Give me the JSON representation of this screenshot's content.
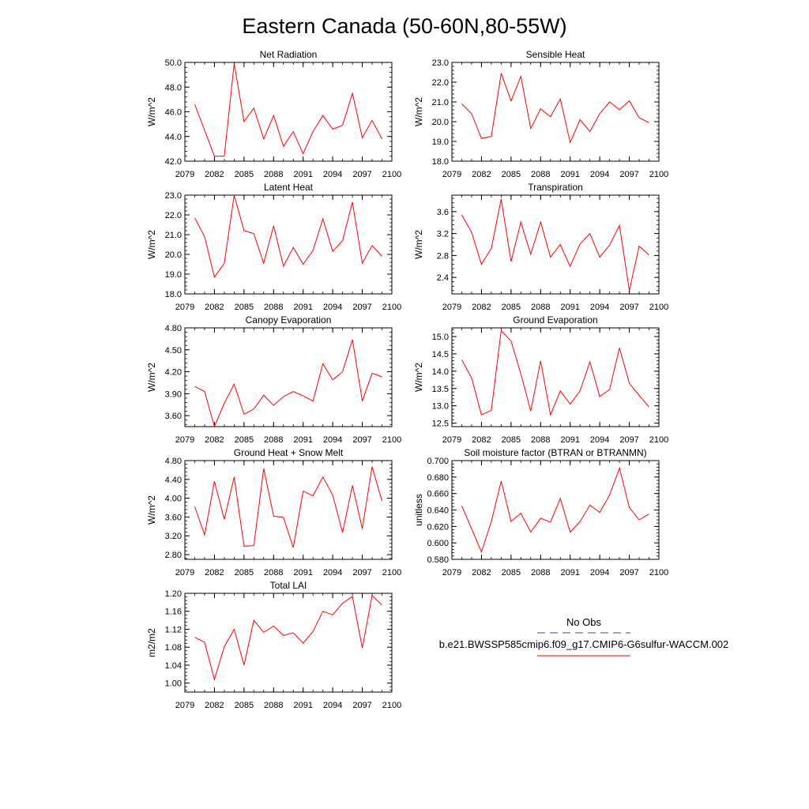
{
  "page_title": "Eastern Canada (50-60N,80-55W)",
  "legend": {
    "entries": [
      {
        "label": "No Obs",
        "color": "#3b3bb0",
        "style": "dashed"
      },
      {
        "label": "b.e21.BWSSP585cmip6.f09_g17.CMIP6-G6sulfur-WACCM.002",
        "color": "#ff0000",
        "style": "solid"
      }
    ]
  },
  "chart_data": [
    {
      "type": "line",
      "title": "Net Radiation",
      "ylabel": "W/m^2",
      "xlim": [
        2079,
        2100
      ],
      "xticks": [
        "2079",
        "2082",
        "2085",
        "2088",
        "2091",
        "2094",
        "2097",
        "2100"
      ],
      "ylim": [
        42.0,
        50.0
      ],
      "yticks": [
        "42.0",
        "44.0",
        "46.0",
        "48.0",
        "50.0"
      ],
      "series": [
        {
          "color": "#ff0000",
          "x": [
            2080,
            2081,
            2082,
            2083,
            2084,
            2085,
            2086,
            2087,
            2088,
            2089,
            2090,
            2091,
            2092,
            2093,
            2094,
            2095,
            2096,
            2097,
            2098,
            2099
          ],
          "values": [
            46.6,
            44.5,
            42.4,
            42.4,
            49.9,
            45.2,
            46.3,
            43.8,
            45.7,
            43.2,
            44.4,
            42.6,
            44.4,
            45.7,
            44.6,
            44.9,
            47.5,
            43.9,
            45.3,
            43.8
          ]
        }
      ]
    },
    {
      "type": "line",
      "title": "Sensible Heat",
      "ylabel": "W/m^2",
      "xlim": [
        2079,
        2100
      ],
      "xticks": [
        "2079",
        "2082",
        "2085",
        "2088",
        "2091",
        "2094",
        "2097",
        "2100"
      ],
      "ylim": [
        18.0,
        23.0
      ],
      "yticks": [
        "18.0",
        "19.0",
        "20.0",
        "21.0",
        "22.0",
        "23.0"
      ],
      "series": [
        {
          "color": "#ff0000",
          "x": [
            2080,
            2081,
            2082,
            2083,
            2084,
            2085,
            2086,
            2087,
            2088,
            2089,
            2090,
            2091,
            2092,
            2093,
            2094,
            2095,
            2096,
            2097,
            2098,
            2099
          ],
          "values": [
            20.9,
            20.4,
            19.15,
            19.25,
            22.45,
            21.05,
            22.3,
            19.65,
            20.65,
            20.25,
            21.15,
            18.95,
            20.1,
            19.5,
            20.4,
            21.0,
            20.6,
            21.05,
            20.2,
            19.95
          ]
        }
      ]
    },
    {
      "type": "line",
      "title": "Latent Heat",
      "ylabel": "W/m^2",
      "xlim": [
        2079,
        2100
      ],
      "xticks": [
        "2079",
        "2082",
        "2085",
        "2088",
        "2091",
        "2094",
        "2097",
        "2100"
      ],
      "ylim": [
        18.0,
        23.0
      ],
      "yticks": [
        "18.0",
        "19.0",
        "20.0",
        "21.0",
        "22.0",
        "23.0"
      ],
      "series": [
        {
          "color": "#ff0000",
          "x": [
            2080,
            2081,
            2082,
            2083,
            2084,
            2085,
            2086,
            2087,
            2088,
            2089,
            2090,
            2091,
            2092,
            2093,
            2094,
            2095,
            2096,
            2097,
            2098,
            2099
          ],
          "values": [
            21.85,
            20.9,
            18.85,
            19.55,
            23.0,
            21.2,
            21.05,
            19.55,
            21.45,
            19.4,
            20.35,
            19.5,
            20.2,
            21.8,
            20.15,
            20.7,
            22.65,
            19.55,
            20.45,
            19.9
          ]
        }
      ]
    },
    {
      "type": "line",
      "title": "Transpiration",
      "ylabel": "W/m^2",
      "xlim": [
        2079,
        2100
      ],
      "xticks": [
        "2079",
        "2082",
        "2085",
        "2088",
        "2091",
        "2094",
        "2097",
        "2100"
      ],
      "ylim": [
        2.1,
        3.9
      ],
      "yticks": [
        "2.4",
        "2.8",
        "3.2",
        "3.6"
      ],
      "series": [
        {
          "color": "#ff0000",
          "x": [
            2080,
            2081,
            2082,
            2083,
            2084,
            2085,
            2086,
            2087,
            2088,
            2089,
            2090,
            2091,
            2092,
            2093,
            2094,
            2095,
            2096,
            2097,
            2098,
            2099
          ],
          "values": [
            3.54,
            3.22,
            2.64,
            2.93,
            3.83,
            2.69,
            3.41,
            2.82,
            3.41,
            2.77,
            3.0,
            2.6,
            3.01,
            3.2,
            2.77,
            2.99,
            3.35,
            2.16,
            2.97,
            2.81
          ]
        }
      ]
    },
    {
      "type": "line",
      "title": "Canopy Evaporation",
      "ylabel": "W/m^2",
      "xlim": [
        2079,
        2100
      ],
      "xticks": [
        "2079",
        "2082",
        "2085",
        "2088",
        "2091",
        "2094",
        "2097",
        "2100"
      ],
      "ylim": [
        3.45,
        4.8
      ],
      "yticks": [
        "3.60",
        "3.90",
        "4.20",
        "4.50",
        "4.80"
      ],
      "series": [
        {
          "color": "#ff0000",
          "x": [
            2080,
            2081,
            2082,
            2083,
            2084,
            2085,
            2086,
            2087,
            2088,
            2089,
            2090,
            2091,
            2092,
            2093,
            2094,
            2095,
            2096,
            2097,
            2098,
            2099
          ],
          "values": [
            4.0,
            3.93,
            3.45,
            3.77,
            4.03,
            3.62,
            3.69,
            3.88,
            3.74,
            3.86,
            3.93,
            3.87,
            3.8,
            4.31,
            4.09,
            4.2,
            4.64,
            3.8,
            4.18,
            4.13
          ]
        }
      ]
    },
    {
      "type": "line",
      "title": "Ground Evaporation",
      "ylabel": "W/m^2",
      "xlim": [
        2079,
        2100
      ],
      "xticks": [
        "2079",
        "2082",
        "2085",
        "2088",
        "2091",
        "2094",
        "2097",
        "2100"
      ],
      "ylim": [
        12.4,
        15.25
      ],
      "yticks": [
        "12.5",
        "13.0",
        "13.5",
        "14.0",
        "14.5",
        "15.0"
      ],
      "series": [
        {
          "color": "#ff0000",
          "x": [
            2080,
            2081,
            2082,
            2083,
            2084,
            2085,
            2086,
            2087,
            2088,
            2089,
            2090,
            2091,
            2092,
            2093,
            2094,
            2095,
            2096,
            2097,
            2098,
            2099
          ],
          "values": [
            14.33,
            13.8,
            12.74,
            12.87,
            15.17,
            14.87,
            13.92,
            12.85,
            14.3,
            12.74,
            13.43,
            13.05,
            13.43,
            14.27,
            13.27,
            13.47,
            14.67,
            13.65,
            13.3,
            12.97
          ]
        }
      ]
    },
    {
      "type": "line",
      "title": "Ground Heat + Snow Melt",
      "ylabel": "W/m^2",
      "xlim": [
        2079,
        2100
      ],
      "xticks": [
        "2079",
        "2082",
        "2085",
        "2088",
        "2091",
        "2094",
        "2097",
        "2100"
      ],
      "ylim": [
        2.7,
        4.8
      ],
      "yticks": [
        "2.80",
        "3.20",
        "3.60",
        "4.00",
        "4.40",
        "4.80"
      ],
      "series": [
        {
          "color": "#ff0000",
          "x": [
            2080,
            2081,
            2082,
            2083,
            2084,
            2085,
            2086,
            2087,
            2088,
            2089,
            2090,
            2091,
            2092,
            2093,
            2094,
            2095,
            2096,
            2097,
            2098,
            2099
          ],
          "values": [
            3.82,
            3.22,
            4.36,
            3.55,
            4.45,
            2.98,
            2.99,
            4.63,
            3.62,
            3.59,
            2.95,
            4.15,
            4.05,
            4.45,
            4.07,
            3.27,
            4.27,
            3.35,
            4.67,
            3.94
          ]
        }
      ]
    },
    {
      "type": "line",
      "title": "Soil moisture factor (BTRAN or BTRANMN)",
      "ylabel": "unitless",
      "xlim": [
        2079,
        2100
      ],
      "xticks": [
        "2079",
        "2082",
        "2085",
        "2088",
        "2091",
        "2094",
        "2097",
        "2100"
      ],
      "ylim": [
        0.58,
        0.7
      ],
      "yticks": [
        "0.580",
        "0.600",
        "0.620",
        "0.640",
        "0.660",
        "0.680",
        "0.700"
      ],
      "series": [
        {
          "color": "#ff0000",
          "x": [
            2080,
            2081,
            2082,
            2083,
            2084,
            2085,
            2086,
            2087,
            2088,
            2089,
            2090,
            2091,
            2092,
            2093,
            2094,
            2095,
            2096,
            2097,
            2098,
            2099
          ],
          "values": [
            0.645,
            0.617,
            0.589,
            0.626,
            0.675,
            0.626,
            0.636,
            0.613,
            0.63,
            0.625,
            0.654,
            0.613,
            0.626,
            0.646,
            0.637,
            0.658,
            0.691,
            0.643,
            0.628,
            0.635
          ]
        }
      ]
    },
    {
      "type": "line",
      "title": "Total LAI",
      "ylabel": "m2/m2",
      "xlim": [
        2079,
        2100
      ],
      "xticks": [
        "2079",
        "2082",
        "2085",
        "2088",
        "2091",
        "2094",
        "2097",
        "2100"
      ],
      "ylim": [
        0.98,
        1.2
      ],
      "yticks": [
        "1.00",
        "1.04",
        "1.08",
        "1.12",
        "1.16",
        "1.20"
      ],
      "series": [
        {
          "color": "#ff0000",
          "x": [
            2080,
            2081,
            2082,
            2083,
            2084,
            2085,
            2086,
            2087,
            2088,
            2089,
            2090,
            2091,
            2092,
            2093,
            2094,
            2095,
            2096,
            2097,
            2098,
            2099
          ],
          "values": [
            1.102,
            1.091,
            1.008,
            1.081,
            1.12,
            1.04,
            1.14,
            1.113,
            1.127,
            1.106,
            1.112,
            1.089,
            1.115,
            1.16,
            1.152,
            1.178,
            1.193,
            1.078,
            1.195,
            1.174
          ]
        }
      ]
    }
  ]
}
